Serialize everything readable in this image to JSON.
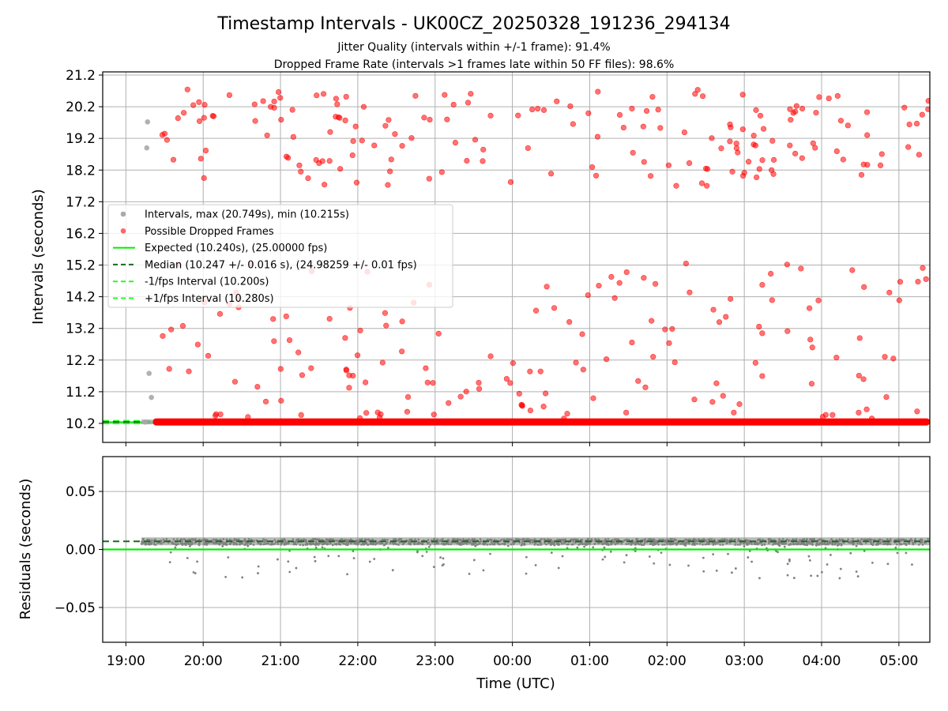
{
  "title": "Timestamp Intervals - UK00CZ_20250328_191236_294134",
  "subtitles": [
    "Jitter Quality (intervals within +/-1 frame): 91.4%",
    "Dropped Frame Rate (intervals >1 frames late within 50 FF files): 98.6%"
  ],
  "colors": {
    "intervals": "#a9a9a9",
    "dropped": "#ff0000",
    "expected": "#00ee00",
    "median": "#1a6b1a",
    "fps_bounds": "#22ff22",
    "residuals": "#808080",
    "grid": "#b0b0b0"
  },
  "chart_data": [
    {
      "type": "scatter",
      "panel": "intervals",
      "ylabel": "Intervals (seconds)",
      "ylim": [
        9.6,
        21.3
      ],
      "yticks": [
        10.2,
        11.2,
        12.2,
        13.2,
        14.2,
        15.2,
        16.2,
        17.2,
        18.2,
        19.2,
        20.2,
        21.2
      ],
      "xlim_hours": [
        18.7,
        29.4
      ],
      "grid": true,
      "legend_position": "center-left",
      "legend": [
        "Intervals, max (20.749s), min (10.215s)",
        "Possible Dropped Frames",
        "Expected (10.240s), (25.00000 fps)",
        "Median (10.247 +/- 0.016 s), (24.98259 +/- 0.01 fps)",
        "-1/fps Interval (10.200s)",
        "+1/fps Interval (10.280s)"
      ],
      "series": [
        {
          "name": "Intervals, max (20.749s), min (10.215s)",
          "kind": "scatter",
          "band": [
            19.2,
            29.4,
            10.247
          ],
          "points": [
            [
              19.27,
              18.9
            ],
            [
              19.28,
              19.72
            ],
            [
              19.3,
              11.78
            ],
            [
              19.33,
              11.02
            ],
            [
              19.25,
              10.24
            ]
          ]
        },
        {
          "name": "Possible Dropped Frames",
          "kind": "scatter",
          "band": [
            19.35,
            29.4,
            10.247
          ],
          "seed": 20250328,
          "count_high": 180,
          "count_low": 160,
          "high_range": [
            17.7,
            20.75
          ],
          "low_range": [
            10.35,
            15.3
          ]
        },
        {
          "name": "Expected (10.240s), (25.00000 fps)",
          "kind": "hline",
          "y": 10.24
        },
        {
          "name": "Median (10.247 +/- 0.016 s), (24.98259 +/- 0.01 fps)",
          "kind": "hline",
          "y": 10.247
        },
        {
          "name": "-1/fps Interval (10.200s)",
          "kind": "hline",
          "y": 10.2
        },
        {
          "name": "+1/fps Interval (10.280s)",
          "kind": "hline",
          "y": 10.28
        }
      ]
    },
    {
      "type": "scatter",
      "panel": "residuals",
      "ylabel": "Residuals (seconds)",
      "xlabel": "Time (UTC)",
      "ylim": [
        -0.08,
        0.08
      ],
      "yticks": [
        0.05,
        0.0,
        -0.05
      ],
      "ytick_labels": [
        "0.05",
        "0.00",
        "−0.05"
      ],
      "xlim_hours": [
        18.7,
        29.4
      ],
      "xticks_hours": [
        19,
        20,
        21,
        22,
        23,
        24,
        25,
        26,
        27,
        28,
        29
      ],
      "xtick_labels": [
        "19:00",
        "20:00",
        "21:00",
        "22:00",
        "23:00",
        "00:00",
        "01:00",
        "02:00",
        "03:00",
        "04:00",
        "05:00"
      ],
      "grid": true,
      "series": [
        {
          "kind": "scatter",
          "band": [
            19.2,
            29.4,
            0.007
          ],
          "seed": 77,
          "count_band": 1600,
          "count_low": 160,
          "low_range": [
            -0.025,
            0.004
          ]
        },
        {
          "kind": "hline",
          "y": 0.0
        },
        {
          "kind": "hline_dashed",
          "y": 0.007
        }
      ]
    }
  ]
}
